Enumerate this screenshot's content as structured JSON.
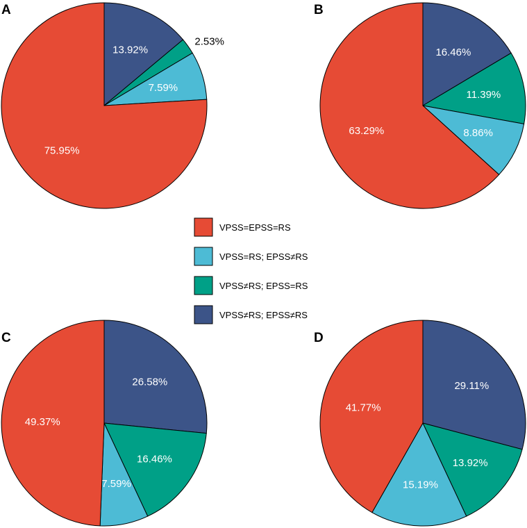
{
  "legend": [
    {
      "label": "VPSS=EPSS=RS",
      "color": "#E64B35"
    },
    {
      "label": "VPSS=RS; EPSS≠RS",
      "color": "#4DBBD5"
    },
    {
      "label": "VPSS≠RS; EPSS=RS",
      "color": "#00A087"
    },
    {
      "label": "VPSS≠RS; EPSS≠RS",
      "color": "#3C5488"
    }
  ],
  "chart_data": [
    {
      "type": "pie",
      "panel": "A",
      "categories": [
        "VPSS≠RS; EPSS≠RS",
        "VPSS≠RS; EPSS=RS",
        "VPSS=RS; EPSS≠RS",
        "VPSS=EPSS=RS"
      ],
      "values": [
        13.92,
        2.53,
        7.59,
        75.95
      ],
      "labels": [
        "13.92%",
        "2.53%",
        "7.59%",
        "75.95%"
      ],
      "colors": [
        "#3C5488",
        "#00A087",
        "#4DBBD5",
        "#E64B35"
      ],
      "start": "12 o'clock, clockwise"
    },
    {
      "type": "pie",
      "panel": "B",
      "categories": [
        "VPSS≠RS; EPSS≠RS",
        "VPSS≠RS; EPSS=RS",
        "VPSS=RS; EPSS≠RS",
        "VPSS=EPSS=RS"
      ],
      "values": [
        16.46,
        11.39,
        8.86,
        63.29
      ],
      "labels": [
        "16.46%",
        "11.39%",
        "8.86%",
        "63.29%"
      ],
      "colors": [
        "#3C5488",
        "#00A087",
        "#4DBBD5",
        "#E64B35"
      ],
      "start": "12 o'clock, clockwise"
    },
    {
      "type": "pie",
      "panel": "C",
      "categories": [
        "VPSS≠RS; EPSS≠RS",
        "VPSS≠RS; EPSS=RS",
        "VPSS=RS; EPSS≠RS",
        "VPSS=EPSS=RS"
      ],
      "values": [
        26.58,
        16.46,
        7.59,
        49.37
      ],
      "labels": [
        "26.58%",
        "16.46%",
        "7.59%",
        "49.37%"
      ],
      "colors": [
        "#3C5488",
        "#00A087",
        "#4DBBD5",
        "#E64B35"
      ],
      "start": "12 o'clock, clockwise"
    },
    {
      "type": "pie",
      "panel": "D",
      "categories": [
        "VPSS≠RS; EPSS≠RS",
        "VPSS≠RS; EPSS=RS",
        "VPSS=RS; EPSS≠RS",
        "VPSS=EPSS=RS"
      ],
      "values": [
        29.11,
        13.92,
        15.19,
        41.77
      ],
      "labels": [
        "29.11%",
        "13.92%",
        "15.19%",
        "41.77%"
      ],
      "colors": [
        "#3C5488",
        "#00A087",
        "#4DBBD5",
        "#E64B35"
      ],
      "start": "12 o'clock, clockwise"
    }
  ]
}
